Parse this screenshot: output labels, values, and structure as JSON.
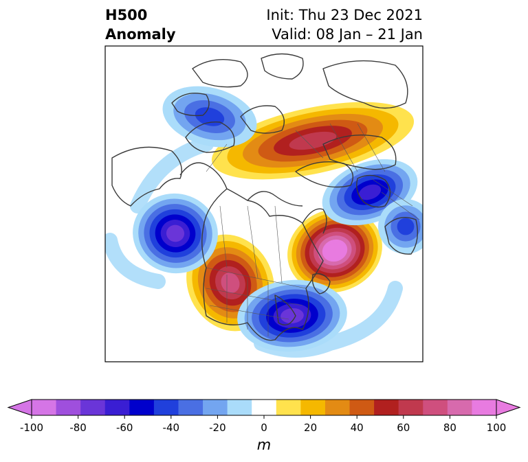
{
  "title": {
    "left_line1": "H500",
    "left_line2": "Anomaly",
    "right_line1": "Init: Thu 23 Dec 2021",
    "right_line2": "Valid: 08 Jan – 21 Jan"
  },
  "map": {
    "projection": "polar stereographic (North America)",
    "anomalies": [
      {
        "name": "positive-anomaly-eastern-canada",
        "value": 100
      },
      {
        "name": "positive-anomaly-western-us",
        "value": 70
      },
      {
        "name": "positive-anomaly-arctic-ridge",
        "value": 60
      },
      {
        "name": "negative-anomaly-gulf-of-alaska",
        "value": -70
      },
      {
        "name": "negative-anomaly-southeast-us",
        "value": -70
      },
      {
        "name": "negative-anomaly-scandinavia",
        "value": -60
      },
      {
        "name": "negative-anomaly-siberia",
        "value": -40
      },
      {
        "name": "negative-anomaly-north-atlantic",
        "value": -40
      }
    ]
  },
  "colorbar": {
    "levels": [
      -100,
      -90,
      -80,
      -70,
      -60,
      -50,
      -40,
      -30,
      -20,
      -10,
      10,
      20,
      30,
      40,
      50,
      60,
      70,
      80,
      90,
      100
    ],
    "colors": [
      "#d575e6",
      "#9f4fdd",
      "#6a35d8",
      "#3a1ed3",
      "#0000cc",
      "#2040dc",
      "#4a6fe3",
      "#73a5f0",
      "#aadcfa",
      "#ffffff",
      "#ffe24d",
      "#f5b800",
      "#e38b14",
      "#cf5a14",
      "#b1201f",
      "#c0394e",
      "#cf4f7e",
      "#d76aad",
      "#e87be0"
    ],
    "over_color": "#e87be0",
    "under_color": "#d575e6",
    "tick_labels": [
      "-100",
      "-80",
      "-60",
      "-40",
      "-20",
      "0",
      "20",
      "40",
      "60",
      "80",
      "100"
    ],
    "units": "m"
  }
}
